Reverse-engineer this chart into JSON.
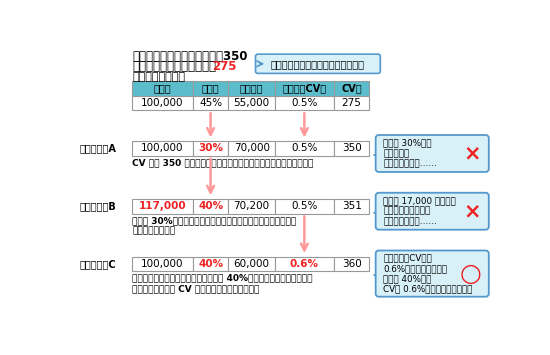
{
  "title_line1": "月間目標コンバージョン数：350",
  "title_line2_prefix": "現状のコンバージョン数：",
  "title_line2_value": "275",
  "callout_text": "目標未達成。今のままではダメだ！",
  "section_title": "現在の数値の詳細",
  "headers": [
    "集客数",
    "直帰率",
    "非直帰数",
    "非直帰者CV率",
    "CV数"
  ],
  "current_row": [
    "100,000",
    "45%",
    "55,000",
    "0.5%",
    "275"
  ],
  "plan_a_label": "改善プランA",
  "plan_a_row": [
    "100,000",
    "30%",
    "70,000",
    "0.5%",
    "350"
  ],
  "plan_a_red_cols": [
    1
  ],
  "plan_a_note": "CV 数を 350 に上げるにはどれだけ直帰率を下げればいいか考える",
  "plan_a_comment": "直帰率 30%まで\n下げるのは\n現実的でないな……",
  "plan_a_result": "×",
  "plan_b_label": "改善プランB",
  "plan_b_row": [
    "117,000",
    "40%",
    "70,200",
    "0.5%",
    "351"
  ],
  "plan_b_red_cols": [
    0,
    1
  ],
  "plan_b_note": "直帰率 30%までの改善は難しいので、広告費追加による集客増\nとあわせて考える",
  "plan_b_comment": "集客を 17,000 増やせば\nいいけど、広告費は\n追加できないな……",
  "plan_b_result": "×",
  "plan_c_label": "改善プランC",
  "plan_c_row": [
    "100,000",
    "40%",
    "60,000",
    "0.6%",
    "360"
  ],
  "plan_c_red_cols": [
    1,
    3
  ],
  "plan_c_note": "広告費は追加できないので、直帰率を 40%まで下げたうえでサイトを\n改善してどこまで CV 率を上げればいいか考える",
  "plan_c_comment": "非直帰者のCV率を\n0.6%にはできそうだ。\n直帰率 40%と、\nCV率 0.6%を目標に頑張ろう！",
  "plan_c_result": "○",
  "bg_color": "#ffffff",
  "table_header_bg": "#5bbccc",
  "table_border": "#999999",
  "red_color": "#ee2222",
  "arrow_color": "#ff9999",
  "callout_bg": "#d8f0f8",
  "callout_border": "#5599cc",
  "comment_bg": "#d8f0f8",
  "comment_border": "#5599cc",
  "col_ws": [
    78,
    46,
    60,
    76,
    46
  ]
}
